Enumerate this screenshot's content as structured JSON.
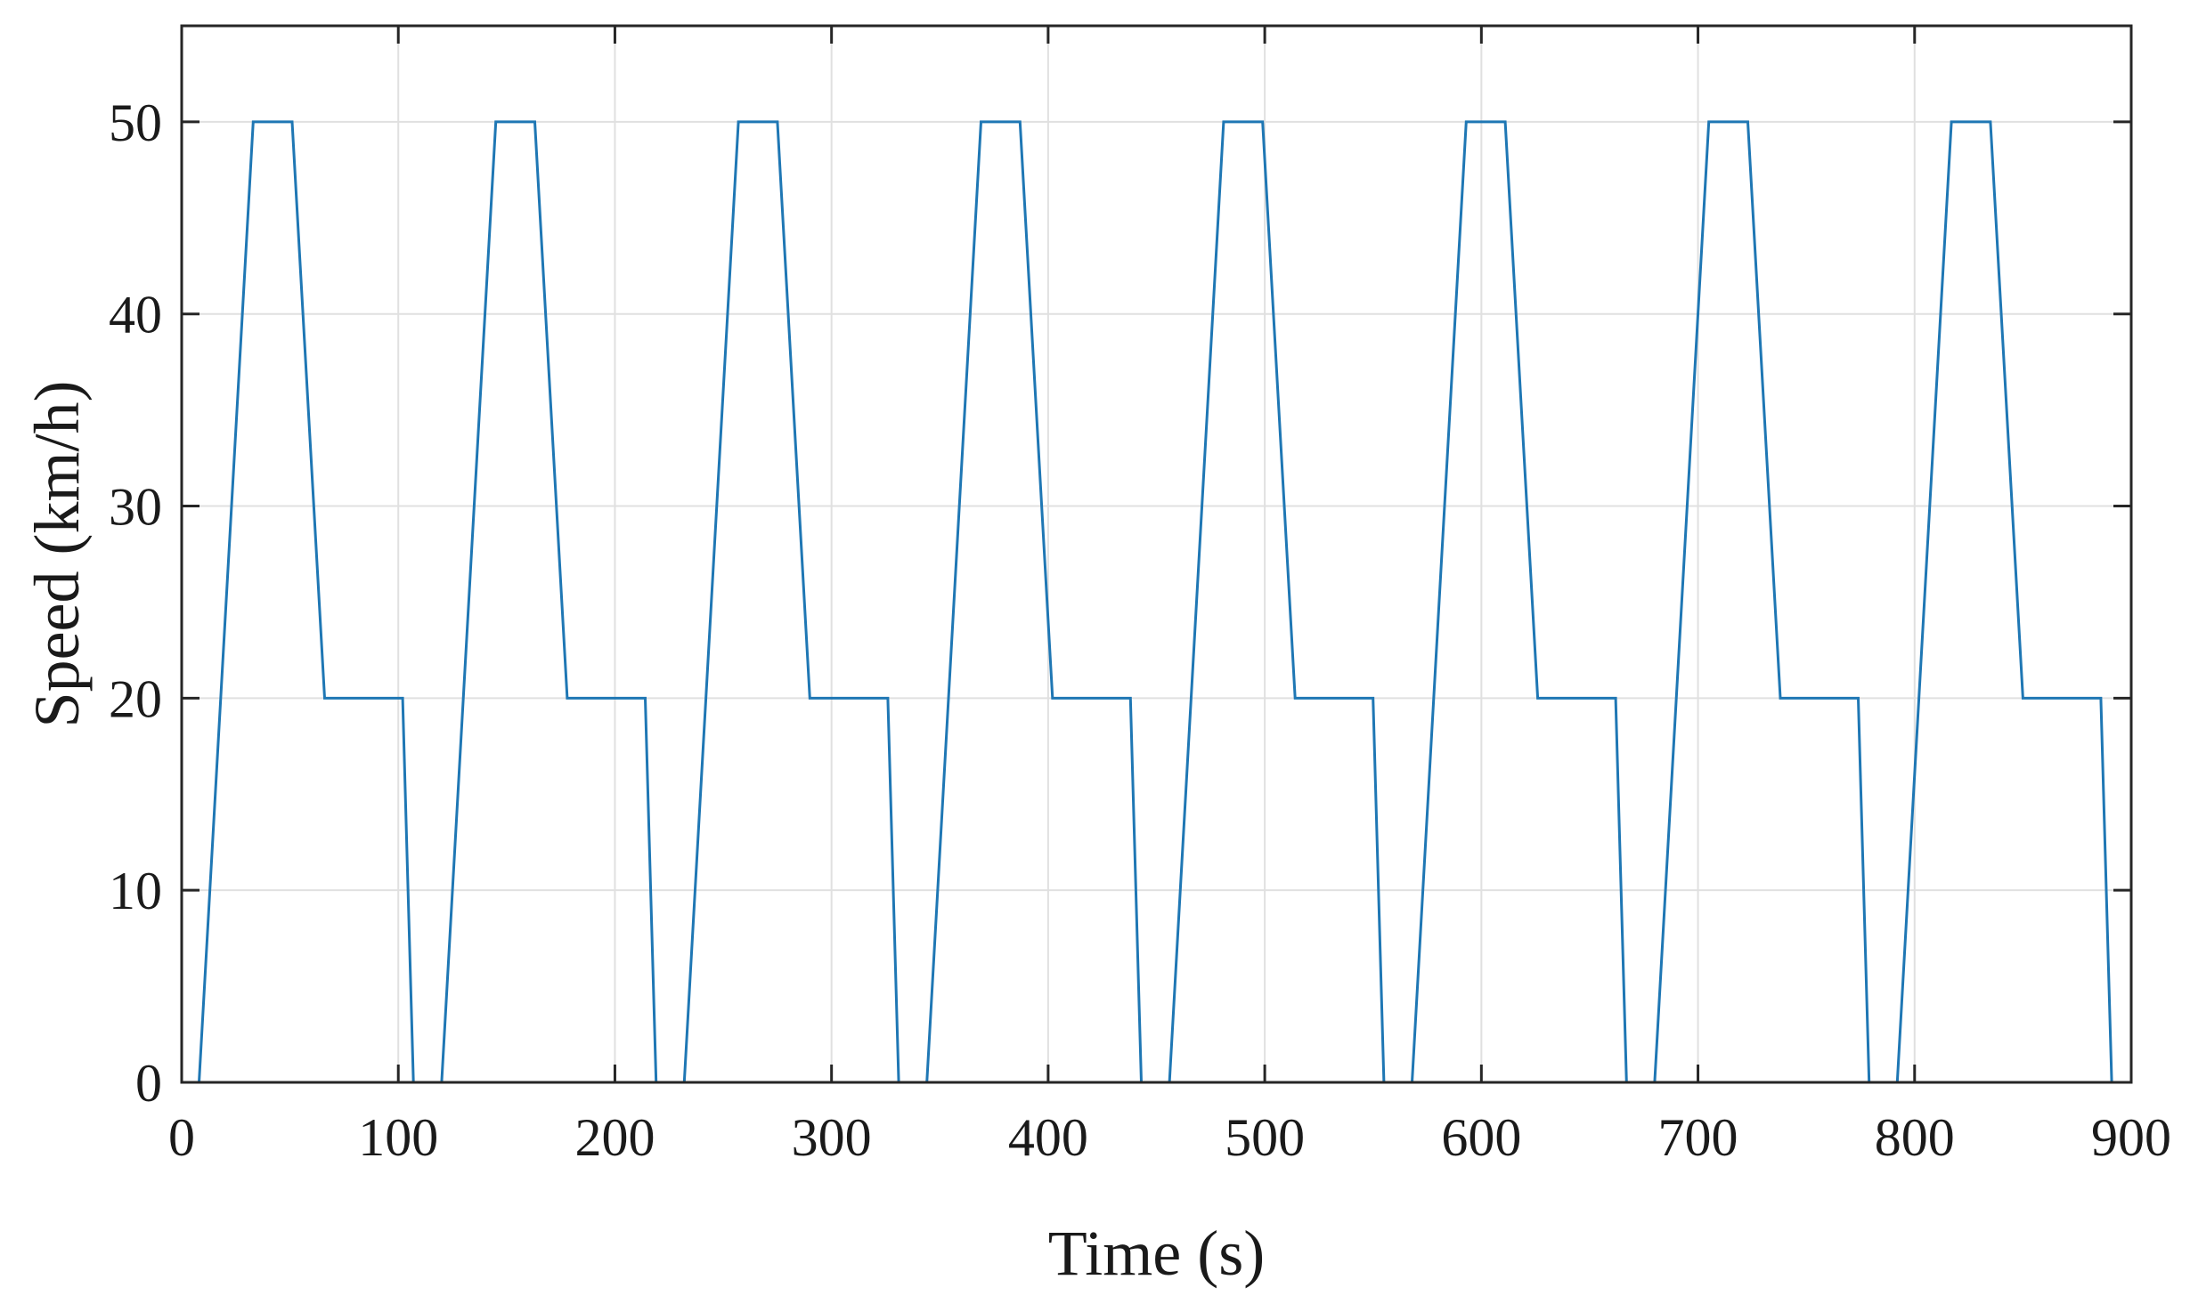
{
  "chart_data": {
    "type": "line",
    "title": "",
    "xlabel": "Time (s)",
    "ylabel": "Speed (km/h)",
    "xlim": [
      0,
      900
    ],
    "ylim": [
      0,
      55
    ],
    "xticks": [
      0,
      100,
      200,
      300,
      400,
      500,
      600,
      700,
      800,
      900
    ],
    "yticks": [
      0,
      10,
      20,
      30,
      40,
      50
    ],
    "xtick_labels": [
      "0",
      "100",
      "200",
      "300",
      "400",
      "500",
      "600",
      "700",
      "800",
      "900"
    ],
    "ytick_labels": [
      "0",
      "10",
      "20",
      "30",
      "40",
      "50"
    ],
    "grid": true,
    "legend": "none",
    "line_color": "#1f77b4",
    "grid_color": "#e0e0e0",
    "series": [
      {
        "x": [
          0,
          8,
          33,
          51,
          66,
          102,
          107,
          120,
          145,
          163,
          178,
          214,
          219,
          232,
          257,
          275,
          290,
          326,
          331,
          344,
          369,
          387,
          402,
          438,
          443,
          456,
          481,
          499,
          514,
          550,
          555,
          568,
          593,
          611,
          626,
          662,
          667,
          680,
          705,
          723,
          738,
          774,
          779,
          792,
          817,
          835,
          850,
          886,
          891
        ],
        "y": [
          0,
          0,
          50,
          50,
          20,
          20,
          0,
          0,
          50,
          50,
          20,
          20,
          0,
          0,
          50,
          50,
          20,
          20,
          0,
          0,
          50,
          50,
          20,
          20,
          0,
          0,
          50,
          50,
          20,
          20,
          0,
          0,
          50,
          50,
          20,
          20,
          0,
          0,
          50,
          50,
          20,
          20,
          0,
          0,
          50,
          50,
          20,
          20,
          0
        ]
      }
    ]
  }
}
